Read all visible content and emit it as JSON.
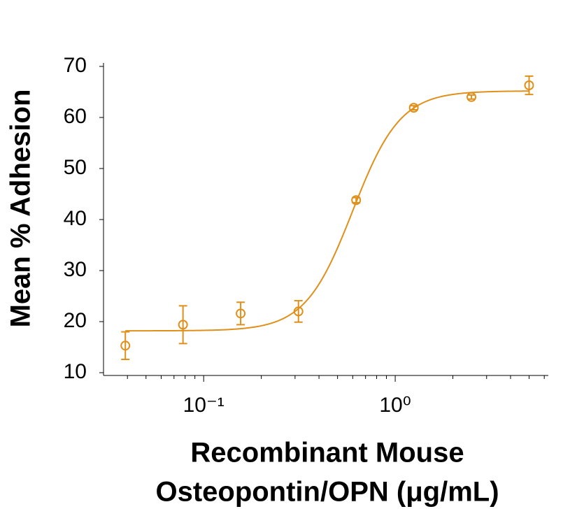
{
  "chart_data": {
    "type": "scatter",
    "ylabel": "Mean % Adhesion",
    "xlabel": [
      "Recombinant Mouse",
      "Osteopontin/OPN (μg/mL)"
    ],
    "log_x": true,
    "color": "#e0901a",
    "x": [
      0.039,
      0.078,
      0.156,
      0.3125,
      0.625,
      1.25,
      2.5,
      5
    ],
    "values": [
      15.3,
      19.4,
      21.6,
      22.0,
      43.8,
      61.9,
      64.0,
      66.3
    ],
    "errors": [
      2.7,
      3.7,
      2.2,
      2.1,
      0.5,
      0.4,
      0.4,
      1.8
    ],
    "fit": {
      "bottom": 18.2,
      "top": 65.2,
      "ec50": 0.6,
      "hill": 3.5
    },
    "xlim": [
      0.03,
      6.3
    ],
    "xticks": [
      {
        "value": 0.1,
        "label": "10⁻¹"
      },
      {
        "value": 1,
        "label": "10⁰"
      }
    ],
    "xminorticks": [
      0.04,
      0.05,
      0.06,
      0.07,
      0.08,
      0.09,
      0.2,
      0.3,
      0.4,
      0.5,
      0.6,
      0.7,
      0.8,
      0.9,
      2,
      3,
      4,
      5,
      6
    ],
    "ylim": [
      10,
      70
    ],
    "yticks": [
      10,
      20,
      30,
      40,
      50,
      60,
      70
    ]
  }
}
